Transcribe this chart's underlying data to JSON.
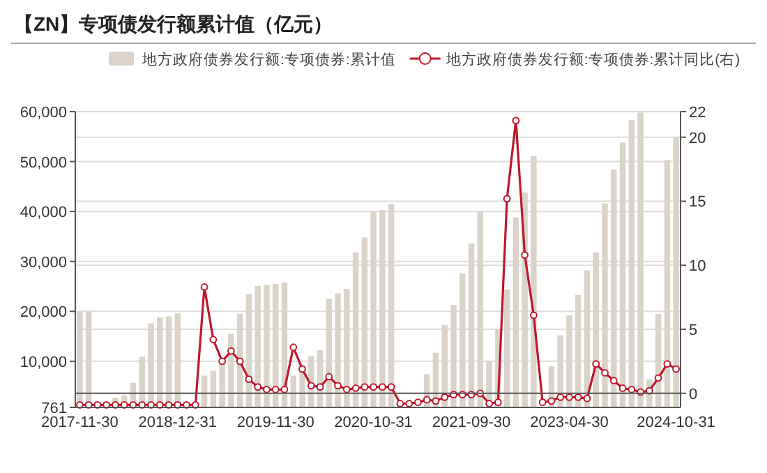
{
  "chart_data": {
    "type": "bar",
    "title": "【ZN】专项债发行额累计值（亿元）",
    "categories": [
      "2017-11-30",
      null,
      null,
      null,
      null,
      null,
      null,
      null,
      null,
      null,
      null,
      "2018-12-31",
      null,
      null,
      null,
      null,
      null,
      null,
      null,
      null,
      null,
      null,
      "2019-11-30",
      null,
      null,
      null,
      null,
      null,
      null,
      null,
      null,
      null,
      null,
      "2020-10-31",
      null,
      null,
      null,
      null,
      null,
      null,
      null,
      null,
      null,
      null,
      "2021-09-30",
      null,
      null,
      null,
      null,
      null,
      null,
      null,
      null,
      null,
      null,
      "2023-04-30",
      null,
      null,
      null,
      null,
      null,
      null,
      null,
      null,
      null,
      null,
      null,
      "2024-10-31"
    ],
    "series": [
      {
        "name": "地方政府债券发行额:专项债券:累计值",
        "color": "#d9d3c9",
        "values": [
          20000,
          20000,
          null,
          null,
          2700,
          3200,
          5700,
          10900,
          17600,
          18800,
          19000,
          19600,
          null,
          null,
          7100,
          8100,
          9700,
          15500,
          19500,
          23500,
          25100,
          25300,
          25500,
          25800,
          7100,
          8800,
          11000,
          12200,
          22500,
          23600,
          24500,
          31800,
          34800,
          40000,
          40300,
          41500,
          null,
          null,
          null,
          7400,
          11700,
          17300,
          21300,
          27600,
          33600,
          40000,
          10100,
          16500,
          24400,
          38800,
          43800,
          51100,
          null,
          9000,
          15200,
          19200,
          23300,
          28200,
          31800,
          41600,
          48400,
          53800,
          58300,
          59800,
          6400,
          19500,
          50300,
          54800
        ]
      },
      {
        "name": "地方政府债券发行额:专项债券:累计同比(右)",
        "type": "line",
        "axis": "y2",
        "color": "#c0172c",
        "marker": "circle",
        "values": [
          -0.9,
          -0.9,
          -0.9,
          -0.9,
          -0.9,
          -0.9,
          -0.9,
          -0.9,
          -0.9,
          -0.9,
          -0.9,
          -0.9,
          -0.9,
          -0.9,
          8.3,
          4.2,
          2.5,
          3.3,
          2.5,
          1.1,
          0.5,
          0.3,
          0.3,
          0.3,
          3.6,
          1.9,
          0.6,
          0.5,
          1.3,
          0.6,
          0.3,
          0.4,
          0.5,
          0.5,
          0.5,
          0.5,
          -0.8,
          -0.8,
          -0.7,
          -0.5,
          -0.6,
          -0.3,
          -0.1,
          -0.1,
          -0.1,
          0,
          -0.8,
          -0.7,
          15.2,
          21.3,
          10.8,
          6.1,
          -0.7,
          -0.6,
          -0.3,
          -0.3,
          -0.3,
          -0.4,
          2.3,
          1.6,
          1.0,
          0.4,
          0.3,
          0.1,
          0.2,
          1.2,
          2.3,
          1.9
        ]
      }
    ],
    "ylim": [
      761,
      60000
    ],
    "yticks": [
      761,
      {
        "value": 10000,
        "label": "10,000"
      },
      {
        "value": 20000,
        "label": "20,000"
      },
      {
        "value": 30000,
        "label": "30,000"
      },
      {
        "value": 40000,
        "label": "40,000"
      },
      {
        "value": 50000,
        "label": "50,000"
      },
      {
        "value": 60000,
        "label": "60,000"
      }
    ],
    "y2lim": [
      -1.1,
      22
    ],
    "y2ticks": [
      0,
      5,
      10,
      15,
      20,
      22
    ],
    "grid": "y",
    "legend": "top"
  }
}
